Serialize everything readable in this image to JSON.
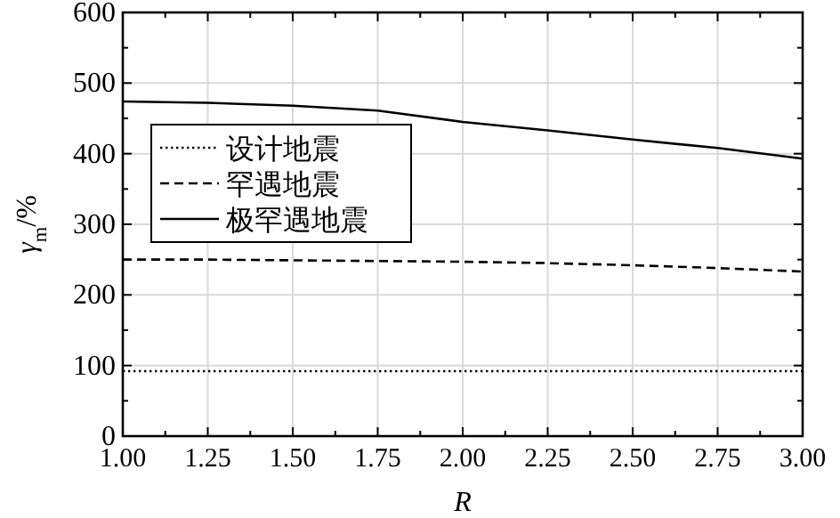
{
  "chart_data": {
    "type": "line",
    "xlabel": "R",
    "ylabel": "γ$_{m}$/%",
    "xlim": [
      1,
      3
    ],
    "ylim": [
      0,
      600
    ],
    "xticks": [
      {
        "value": 1,
        "label": "1.00"
      },
      {
        "value": 1.125,
        "label": null
      },
      {
        "value": 1.25,
        "label": "1.25"
      },
      {
        "value": 1.375,
        "label": null
      },
      {
        "value": 1.5,
        "label": "1.50"
      },
      {
        "value": 1.625,
        "label": null
      },
      {
        "value": 1.75,
        "label": "1.75"
      },
      {
        "value": 1.875,
        "label": null
      },
      {
        "value": 2,
        "label": "2.00"
      },
      {
        "value": 2.125,
        "label": null
      },
      {
        "value": 2.25,
        "label": "2.25"
      },
      {
        "value": 2.375,
        "label": null
      },
      {
        "value": 2.5,
        "label": "2.50"
      },
      {
        "value": 2.625,
        "label": null
      },
      {
        "value": 2.75,
        "label": "2.75"
      },
      {
        "value": 2.875,
        "label": null
      },
      {
        "value": 3,
        "label": "3.00"
      }
    ],
    "yticks": [
      0,
      {
        "value": 50,
        "label": null
      },
      100,
      {
        "value": 150,
        "label": null
      },
      200,
      {
        "value": 250,
        "label": null
      },
      300,
      {
        "value": 350,
        "label": null
      },
      400,
      {
        "value": 450,
        "label": null
      },
      500,
      {
        "value": 550,
        "label": null
      },
      600
    ],
    "x": [
      1,
      1.25,
      1.5,
      1.75,
      2,
      2.25,
      2.5,
      2.75,
      3
    ],
    "grid": true,
    "legend": "top left",
    "series": [
      {
        "name": "设计地震",
        "color": "#000000",
        "line_style": "dotted",
        "values": [
          92,
          92,
          92,
          92,
          92,
          92,
          92,
          92,
          92
        ]
      },
      {
        "name": "罕遇地震",
        "color": "#000000",
        "line_style": "dashed",
        "values": [
          250,
          250,
          249,
          248,
          247,
          245,
          242,
          238,
          233
        ]
      },
      {
        "name": "极罕遇地震",
        "color": "#000000",
        "line_style": "solid",
        "values": [
          474,
          472,
          468,
          461,
          445,
          433,
          420,
          408,
          393
        ]
      }
    ]
  }
}
